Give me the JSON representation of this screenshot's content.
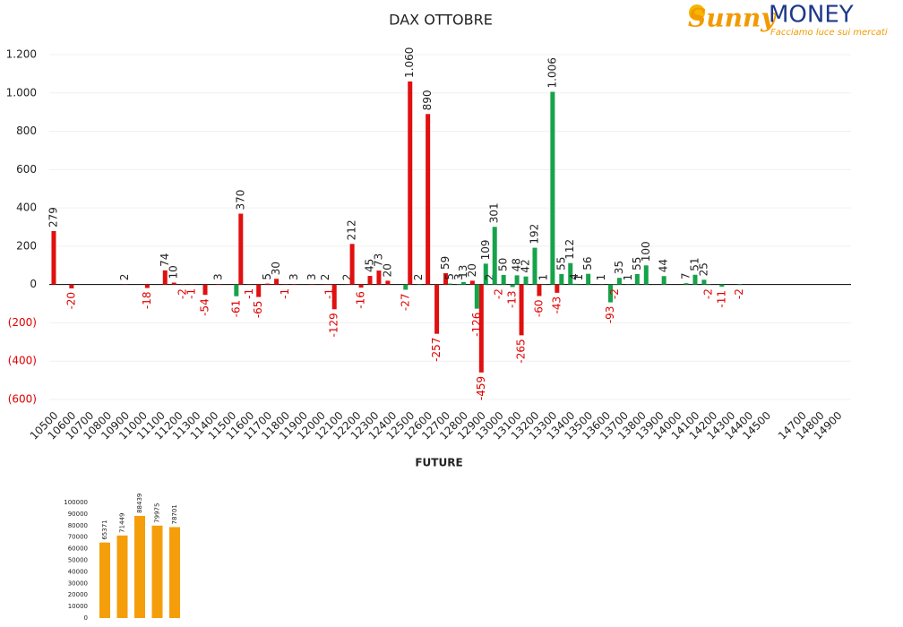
{
  "logo": {
    "brand": "Sunny",
    "name": "MONEY",
    "tagline": "Facciamo luce sui mercati"
  },
  "chart_data": [
    {
      "type": "bar",
      "title": "DAX OTTOBRE",
      "x_label": "FUTURE",
      "xlim": [
        10475,
        14975
      ],
      "xticks": [
        10500,
        10600,
        10700,
        10800,
        10900,
        11000,
        11100,
        11200,
        11300,
        11400,
        11500,
        11600,
        11700,
        11800,
        11900,
        12000,
        12100,
        12200,
        12300,
        12400,
        12500,
        12600,
        12700,
        12800,
        12900,
        13000,
        13100,
        13200,
        13300,
        13400,
        13500,
        13600,
        13700,
        13800,
        13900,
        14000,
        14100,
        14200,
        14300,
        14400,
        14500,
        14700,
        14800,
        14900
      ],
      "ylim": [
        -600,
        1200
      ],
      "yticks": [
        {
          "value": -600,
          "label": "(600)"
        },
        {
          "value": -400,
          "label": "(400)"
        },
        {
          "value": -200,
          "label": "(200)"
        },
        0,
        200,
        400,
        600,
        800,
        {
          "value": 1000,
          "label": "1.000"
        },
        {
          "value": 1200,
          "label": "1.200"
        }
      ],
      "grid": true,
      "negative_color": "#e00000",
      "series": [
        {
          "color": "#e01010",
          "x": [
            10500,
            10600,
            10900,
            11025,
            11125,
            11175,
            11225,
            11275,
            11350,
            11425,
            11550,
            11600,
            11650,
            11700,
            11750,
            11800,
            11850,
            11950,
            12025,
            12050,
            12075,
            12150,
            12175,
            12225,
            12275,
            12325,
            12375,
            12500,
            12600,
            12650,
            12700,
            12850,
            12900,
            13125,
            13225,
            13325
          ],
          "values": [
            279,
            -20,
            2,
            -18,
            74,
            10,
            -2,
            -1,
            -54,
            3,
            370,
            -1,
            -65,
            5,
            30,
            -1,
            3,
            3,
            2,
            -1,
            -129,
            2,
            212,
            -16,
            45,
            73,
            20,
            1060,
            890,
            -257,
            59,
            20,
            -459,
            -265,
            -60,
            -43
          ],
          "value_labels": [
            "279",
            "-20",
            "2",
            "-18",
            "74",
            "10",
            "-2",
            "-1",
            "-54",
            "3",
            "370",
            "-1",
            "-65",
            "5",
            "30",
            "-1",
            "3",
            "3",
            "2",
            "-1",
            "-129",
            "2",
            "212",
            "-16",
            "45",
            "73",
            "20",
            "1.060",
            "890",
            "-257",
            "59",
            "20",
            "-459",
            "-265",
            "-60",
            "-43"
          ]
        },
        {
          "color": "#16a34a",
          "x": [
            11525,
            12475,
            12550,
            12725,
            12775,
            12800,
            12875,
            12925,
            12950,
            12975,
            13000,
            13025,
            13075,
            13100,
            13150,
            13200,
            13250,
            13300,
            13350,
            13400,
            13425,
            13450,
            13500,
            13575,
            13625,
            13650,
            13675,
            13725,
            13775,
            13825,
            13925,
            14050,
            14100,
            14150,
            14175,
            14250,
            14350
          ],
          "values": [
            -61,
            -27,
            2,
            5,
            3,
            13,
            -126,
            109,
            2,
            301,
            -2,
            50,
            -13,
            48,
            42,
            192,
            1,
            1006,
            55,
            112,
            4,
            1,
            56,
            1,
            -93,
            -2,
            35,
            1,
            55,
            100,
            44,
            7,
            51,
            25,
            -2,
            -11,
            -2
          ],
          "value_labels": [
            "-61",
            "-27",
            "2",
            "5",
            "3",
            "13",
            "-126",
            "109",
            "2",
            "301",
            "-2",
            "50",
            "-13",
            "48",
            "42",
            "192",
            "1",
            "1.006",
            "55",
            "112",
            "4",
            "1",
            "56",
            "1",
            "-93",
            "-2",
            "35",
            "1",
            "55",
            "100",
            "44",
            "7",
            "51",
            "25",
            "-2",
            "-11",
            "-2"
          ]
        }
      ]
    },
    {
      "type": "bar",
      "values": [
        65371,
        71449,
        88439,
        79975,
        78701
      ],
      "color": "#f59e0b",
      "ylim": [
        0,
        100000
      ],
      "yticks": [
        0,
        10000,
        20000,
        30000,
        40000,
        50000,
        60000,
        70000,
        80000,
        90000,
        100000
      ]
    }
  ]
}
